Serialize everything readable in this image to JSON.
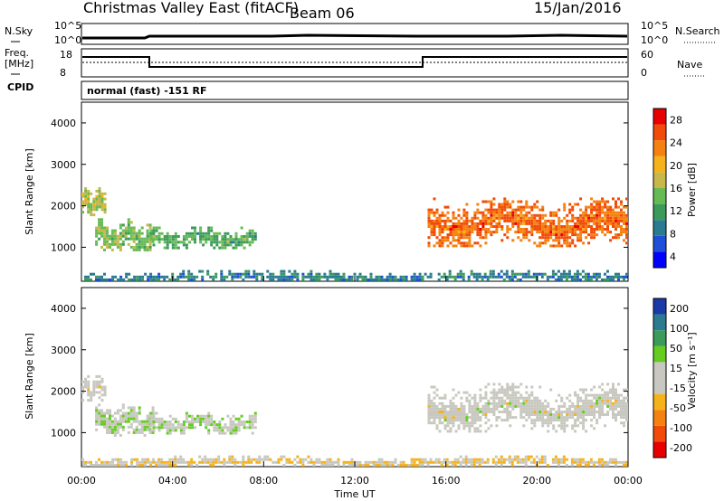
{
  "header": {
    "radar": "Christmas Valley East (fitACF)",
    "beam": "Beam 06",
    "date": "15/Jan/2016"
  },
  "nsky_panel": {
    "left_label": "N.Sky",
    "right_label": "N.Search",
    "left_ticks": [
      "10^5",
      "10^0"
    ],
    "right_ticks": [
      "10^5",
      "10^0"
    ]
  },
  "freq_panel": {
    "left_label_1": "Freq.",
    "left_label_2": "[MHz]",
    "right_label": "Nave",
    "left_ticks": [
      "18",
      "8"
    ],
    "right_ticks": [
      "60",
      "0"
    ]
  },
  "cpid": {
    "label": "CPID",
    "text": "normal (fast) -151 RF"
  },
  "colors": {
    "power_scale": [
      "#0000ff",
      "#1f4fd8",
      "#2a7a90",
      "#3c9a5a",
      "#66bb55",
      "#c8b84a",
      "#f6b21a",
      "#f58210",
      "#f24a08",
      "#e80000"
    ],
    "velocity_scale": [
      "#e80000",
      "#f24a08",
      "#f58210",
      "#f6b21a",
      "#c8c8c0",
      "#c8c8c0",
      "#66cc22",
      "#3c9a5a",
      "#2a7a90",
      "#1a3aa8"
    ]
  },
  "chart_data": [
    {
      "type": "heatmap",
      "title": "",
      "xlabel": "",
      "ylabel": "Slant Range [km]",
      "x_ticks": [
        "00:00",
        "04:00",
        "08:00",
        "12:00",
        "16:00",
        "20:00",
        "00:00"
      ],
      "y_ticks": [
        "1000",
        "2000",
        "3000",
        "4000"
      ],
      "ylim": [
        180,
        4500
      ],
      "colorbar": {
        "label": "Power [dB]",
        "ticks": [
          "28",
          "24",
          "20",
          "16",
          "12",
          "8",
          "4"
        ],
        "range": [
          0,
          30
        ]
      },
      "echo_regions": [
        {
          "time_h": [
            0.0,
            1.1
          ],
          "range_km": [
            1750,
            2450
          ],
          "mean_db": 16
        },
        {
          "time_h": [
            0.6,
            3.2
          ],
          "range_km": [
            900,
            1700
          ],
          "mean_db": 14
        },
        {
          "time_h": [
            3.0,
            7.7
          ],
          "range_km": [
            950,
            1500
          ],
          "mean_db": 12
        },
        {
          "time_h": [
            15.2,
            24.0
          ],
          "range_km": [
            1000,
            2200
          ],
          "mean_db": 24
        },
        {
          "time_h": [
            0.0,
            24.0
          ],
          "range_km": [
            180,
            450
          ],
          "mean_db": 8
        }
      ]
    },
    {
      "type": "heatmap",
      "title": "",
      "xlabel": "Time UT",
      "ylabel": "Slant Range [km]",
      "x_ticks": [
        "00:00",
        "04:00",
        "08:00",
        "12:00",
        "16:00",
        "20:00",
        "00:00"
      ],
      "y_ticks": [
        "1000",
        "2000",
        "3000",
        "4000"
      ],
      "ylim": [
        180,
        4500
      ],
      "colorbar": {
        "label": "Velocity [m s⁻¹]",
        "ticks": [
          "200",
          "100",
          "50",
          "15",
          "-15",
          "-50",
          "-100",
          "-200"
        ],
        "range": [
          -250,
          250
        ]
      },
      "echo_regions": [
        {
          "time_h": [
            0.0,
            1.1
          ],
          "range_km": [
            1750,
            2450
          ],
          "mean_velocity": 0
        },
        {
          "time_h": [
            0.6,
            3.2
          ],
          "range_km": [
            900,
            1700
          ],
          "mean_velocity": 30
        },
        {
          "time_h": [
            3.0,
            7.7
          ],
          "range_km": [
            950,
            1500
          ],
          "mean_velocity": 30
        },
        {
          "time_h": [
            15.2,
            24.0
          ],
          "range_km": [
            1000,
            2200
          ],
          "mean_velocity": 0
        },
        {
          "time_h": [
            0.0,
            24.0
          ],
          "range_km": [
            180,
            450
          ],
          "mean_velocity": -40
        }
      ]
    }
  ]
}
